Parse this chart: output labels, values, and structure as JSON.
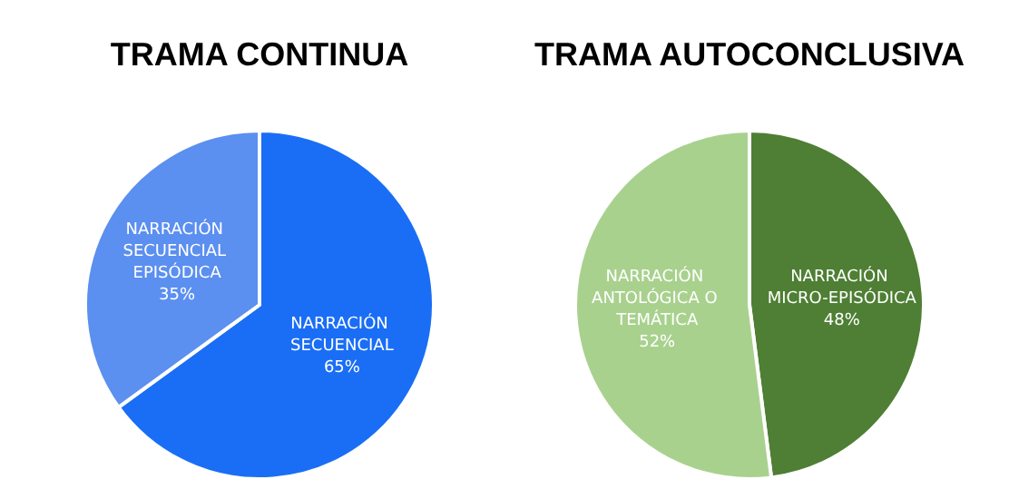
{
  "chart_data": [
    {
      "type": "pie",
      "title": "TRAMA CONTINUA",
      "categories": [
        "NARRACIÓN SECUENCIAL",
        "NARRACIÓN SECUENCIAL EPISÓDICA"
      ],
      "values": [
        65,
        35
      ],
      "value_labels": [
        "65%",
        "35%"
      ],
      "colors": [
        "#1a6ef5",
        "#5b8ff0"
      ],
      "data_labels": true,
      "legend": false
    },
    {
      "type": "pie",
      "title": "TRAMA AUTOCONCLUSIVA",
      "categories": [
        "NARRACIÓN MICRO-EPISÓDICA",
        "NARRACIÓN ANTOLÓGICA O TEMÁTICA"
      ],
      "values": [
        48,
        52
      ],
      "value_labels": [
        "48%",
        "52%"
      ],
      "colors": [
        "#4e7f34",
        "#a9d18e"
      ],
      "data_labels": true,
      "legend": false
    }
  ]
}
